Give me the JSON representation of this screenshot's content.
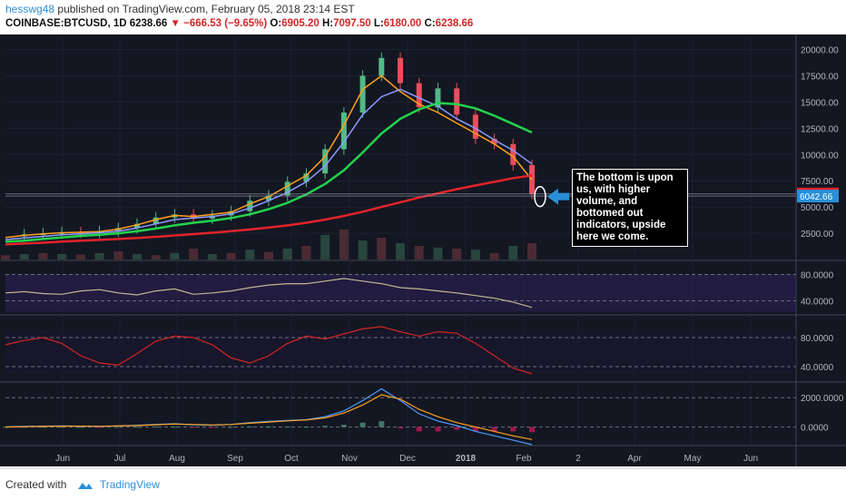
{
  "header": {
    "username": "hesswg48",
    "published": "published on TradingView.com, February 05, 2018 23:14 EST",
    "symbol": "COINBASE:BTCUSD, 1D",
    "last": "6238.66",
    "change": "−666.53 (−9.65%)",
    "ohlc": {
      "o_label": "O:",
      "o": "6905.20",
      "h_label": "H:",
      "h": "7097.50",
      "l_label": "L:",
      "l": "6180.00",
      "c_label": "C:",
      "c": "6238.66"
    }
  },
  "annotation": "The bottom is upon us, with higher volume, and bottomed out indicators, upside here we come.",
  "footer": {
    "created": "Created with",
    "brand": "TradingView"
  },
  "colors": {
    "background": "#131722",
    "up": "#53b987",
    "down": "#eb4d5c",
    "ma_fast": "#8e9bff",
    "ma_orange": "#ff9f1c",
    "ma_green": "#22d34b",
    "ma_red": "#e3232a",
    "note_bg": "#000000"
  },
  "chart_data": [
    {
      "type": "line",
      "title": "COINBASE:BTCUSD, 1D",
      "x_tick_labels": [
        "Jun",
        "Jul",
        "Aug",
        "Sep",
        "Oct",
        "Nov",
        "Dec",
        "2018",
        "Feb",
        "2",
        "Apr",
        "May",
        "Jun"
      ],
      "y_tick_labels": [
        "20000.00",
        "17500.00",
        "15000.00",
        "12500.00",
        "10000.00",
        "7500.00",
        "5000.00",
        "2500.00"
      ],
      "ylim": [
        0,
        21000
      ],
      "price_labels": [
        {
          "text": "6238.66",
          "value": 6238.66,
          "color": "#e3232a"
        },
        {
          "text": "6042.66",
          "value": 6042.66,
          "color": "#2b8fd6"
        }
      ],
      "series": [
        {
          "values": [
            2200,
            2400,
            2500,
            2600,
            2550,
            2700,
            3000,
            3400,
            4000,
            4300,
            3900,
            4200,
            4600,
            5600,
            6100,
            7400,
            8200,
            10500,
            14000,
            17500,
            19200,
            16800,
            14500,
            16300,
            13800,
            11500,
            11000,
            9000,
            6239
          ]
        },
        {
          "values": [
            2100,
            2300,
            2450,
            2550,
            2600,
            2650,
            2900,
            3300,
            3800,
            4200,
            4100,
            4300,
            4500,
            5300,
            6000,
            7000,
            8000,
            9800,
            12800,
            16200,
            17500,
            16000,
            14800,
            14000,
            13000,
            12000,
            11000,
            9800,
            7600
          ]
        },
        {
          "values": [
            1900,
            2050,
            2200,
            2350,
            2450,
            2550,
            2700,
            3000,
            3400,
            3800,
            3950,
            4100,
            4350,
            4900,
            5600,
            6400,
            7400,
            8900,
            11200,
            13800,
            15500,
            16200,
            15400,
            14600,
            13400,
            12500,
            11400,
            10400,
            9100
          ]
        },
        {
          "values": [
            1700,
            1800,
            1950,
            2100,
            2250,
            2350,
            2500,
            2700,
            2950,
            3250,
            3500,
            3700,
            3950,
            4300,
            4800,
            5400,
            6200,
            7200,
            8500,
            10200,
            12000,
            13400,
            14300,
            14900,
            14800,
            14400,
            13700,
            12900,
            12100
          ]
        },
        {
          "values": [
            1450,
            1520,
            1600,
            1700,
            1790,
            1870,
            1950,
            2050,
            2160,
            2290,
            2420,
            2550,
            2700,
            2860,
            3040,
            3250,
            3500,
            3800,
            4150,
            4550,
            5000,
            5450,
            5900,
            6300,
            6700,
            7050,
            7400,
            7750,
            8000
          ]
        }
      ]
    },
    {
      "type": "line",
      "y_tick_labels": [
        "80.0000",
        "40.0000"
      ],
      "ylim": [
        20,
        100
      ],
      "series": [
        {
          "values": [
            52,
            54,
            51,
            50,
            55,
            57,
            52,
            49,
            55,
            58,
            50,
            52,
            55,
            60,
            64,
            66,
            66,
            70,
            74,
            70,
            66,
            60,
            58,
            55,
            52,
            48,
            44,
            38,
            30
          ]
        }
      ]
    },
    {
      "type": "line",
      "y_tick_labels": [
        "80.0000",
        "40.0000"
      ],
      "ylim": [
        20,
        110
      ],
      "series": [
        {
          "values": [
            70,
            76,
            80,
            72,
            55,
            45,
            42,
            58,
            75,
            82,
            80,
            70,
            52,
            45,
            55,
            72,
            82,
            78,
            85,
            92,
            95,
            88,
            82,
            88,
            86,
            72,
            55,
            38,
            30
          ]
        }
      ]
    },
    {
      "type": "line",
      "y_tick_labels": [
        "2000.0000",
        "0.0000"
      ],
      "ylim": [
        -1200,
        3000
      ],
      "series": [
        {
          "values": [
            10,
            40,
            60,
            80,
            60,
            40,
            80,
            120,
            180,
            220,
            150,
            120,
            180,
            300,
            380,
            450,
            500,
            700,
            1100,
            1800,
            2600,
            1800,
            900,
            400,
            100,
            -300,
            -600,
            -900,
            -1200
          ]
        },
        {
          "values": [
            0,
            20,
            40,
            60,
            60,
            50,
            70,
            100,
            150,
            200,
            170,
            140,
            170,
            260,
            340,
            420,
            480,
            620,
            950,
            1500,
            2200,
            1900,
            1200,
            700,
            300,
            0,
            -300,
            -600,
            -850
          ]
        }
      ]
    }
  ]
}
